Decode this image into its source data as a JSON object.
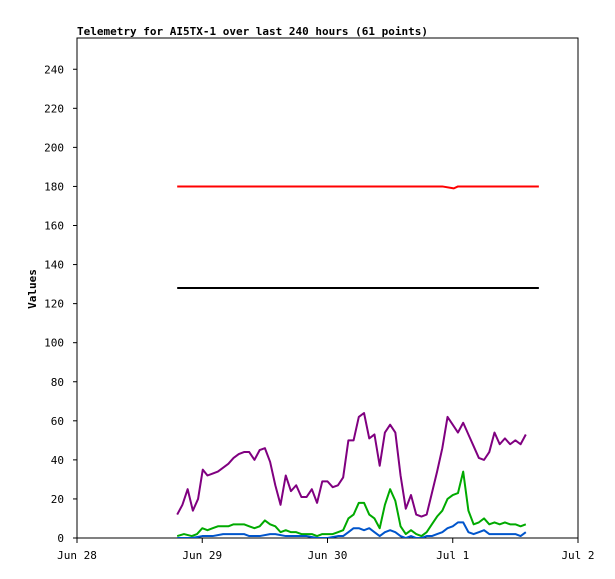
{
  "chart_data": {
    "type": "line",
    "title": "Telemetry for AI5TX-1 over last 240 hours (61 points)",
    "xlabel": "",
    "ylabel": "Values",
    "ylim": [
      0,
      256
    ],
    "y_ticks": [
      0,
      20,
      40,
      60,
      80,
      100,
      120,
      140,
      160,
      180,
      200,
      220,
      240
    ],
    "x_domain_hours": [
      0,
      96
    ],
    "x_ticks": [
      {
        "label": "Jun 28",
        "hour": 0
      },
      {
        "label": "Jun 29",
        "hour": 24
      },
      {
        "label": "Jun 30",
        "hour": 48
      },
      {
        "label": "Jul 1",
        "hour": 72
      },
      {
        "label": "Jul 2",
        "hour": 96
      }
    ],
    "grid": false,
    "legend": "none",
    "series": [
      {
        "color": "#ff0000",
        "points": [
          [
            19.2,
            180
          ],
          [
            38,
            180
          ],
          [
            58,
            180
          ],
          [
            70,
            180
          ],
          [
            72.2,
            179
          ],
          [
            73,
            180
          ],
          [
            85,
            180
          ],
          [
            88.5,
            180
          ]
        ]
      },
      {
        "color": "#000000",
        "points": [
          [
            19.2,
            128
          ],
          [
            88.5,
            128
          ]
        ]
      },
      {
        "color": "#800080",
        "points": [
          [
            19.2,
            12
          ],
          [
            20.2,
            17
          ],
          [
            21.2,
            25
          ],
          [
            22.2,
            14
          ],
          [
            23.2,
            20
          ],
          [
            24.1,
            35
          ],
          [
            25,
            32
          ],
          [
            26,
            33
          ],
          [
            27,
            34
          ],
          [
            28,
            36
          ],
          [
            29,
            38
          ],
          [
            30,
            41
          ],
          [
            31,
            43
          ],
          [
            32,
            44
          ],
          [
            33,
            44
          ],
          [
            34,
            40
          ],
          [
            35,
            45
          ],
          [
            36,
            46
          ],
          [
            37,
            39
          ],
          [
            38,
            27
          ],
          [
            39,
            17
          ],
          [
            40,
            32
          ],
          [
            41,
            24
          ],
          [
            42,
            27
          ],
          [
            43,
            21
          ],
          [
            44,
            21
          ],
          [
            45,
            25
          ],
          [
            46,
            18
          ],
          [
            47,
            29
          ],
          [
            48,
            29
          ],
          [
            49,
            26
          ],
          [
            50,
            27
          ],
          [
            51,
            31
          ],
          [
            52,
            50
          ],
          [
            53,
            50
          ],
          [
            54,
            62
          ],
          [
            55,
            64
          ],
          [
            56,
            51
          ],
          [
            57,
            53
          ],
          [
            58,
            37
          ],
          [
            59,
            54
          ],
          [
            60,
            58
          ],
          [
            61,
            54
          ],
          [
            62,
            32
          ],
          [
            63,
            15
          ],
          [
            64,
            22
          ],
          [
            65,
            12
          ],
          [
            66,
            11
          ],
          [
            67,
            12
          ],
          [
            68,
            23
          ],
          [
            69,
            34
          ],
          [
            70,
            46
          ],
          [
            71,
            62
          ],
          [
            72,
            58
          ],
          [
            73,
            54
          ],
          [
            74,
            59
          ],
          [
            75,
            53
          ],
          [
            76,
            47
          ],
          [
            77,
            41
          ],
          [
            78,
            40
          ],
          [
            79,
            44
          ],
          [
            80,
            54
          ],
          [
            81,
            48
          ],
          [
            82,
            51
          ],
          [
            83,
            48
          ],
          [
            84,
            50
          ],
          [
            85,
            48
          ],
          [
            86,
            53
          ]
        ]
      },
      {
        "color": "#00aa00",
        "points": [
          [
            19.2,
            1
          ],
          [
            20.5,
            2
          ],
          [
            22,
            1
          ],
          [
            23,
            2
          ],
          [
            24,
            5
          ],
          [
            25,
            4
          ],
          [
            26,
            5
          ],
          [
            27,
            6
          ],
          [
            28,
            6
          ],
          [
            29,
            6
          ],
          [
            30,
            7
          ],
          [
            31,
            7
          ],
          [
            32,
            7
          ],
          [
            33,
            6
          ],
          [
            34,
            5
          ],
          [
            35,
            6
          ],
          [
            36,
            9
          ],
          [
            37,
            7
          ],
          [
            38,
            6
          ],
          [
            39,
            3
          ],
          [
            40,
            4
          ],
          [
            41,
            3
          ],
          [
            42,
            3
          ],
          [
            43,
            2
          ],
          [
            44,
            2
          ],
          [
            45,
            2
          ],
          [
            46,
            1
          ],
          [
            47,
            2
          ],
          [
            48,
            2
          ],
          [
            49,
            2
          ],
          [
            50,
            3
          ],
          [
            51,
            4
          ],
          [
            52,
            10
          ],
          [
            53,
            12
          ],
          [
            54,
            18
          ],
          [
            55,
            18
          ],
          [
            56,
            12
          ],
          [
            57,
            10
          ],
          [
            58,
            5
          ],
          [
            59,
            17
          ],
          [
            60,
            25
          ],
          [
            61,
            19
          ],
          [
            62,
            6
          ],
          [
            63,
            2
          ],
          [
            64,
            4
          ],
          [
            65,
            2
          ],
          [
            66,
            1
          ],
          [
            67,
            3
          ],
          [
            68,
            7
          ],
          [
            69,
            11
          ],
          [
            70,
            14
          ],
          [
            71,
            20
          ],
          [
            72,
            22
          ],
          [
            73,
            23
          ],
          [
            74,
            34
          ],
          [
            75,
            14
          ],
          [
            76,
            7
          ],
          [
            77,
            8
          ],
          [
            78,
            10
          ],
          [
            79,
            7
          ],
          [
            80,
            8
          ],
          [
            81,
            7
          ],
          [
            82,
            8
          ],
          [
            83,
            7
          ],
          [
            84,
            7
          ],
          [
            85,
            6
          ],
          [
            86,
            7
          ]
        ]
      },
      {
        "color": "#0055cc",
        "points": [
          [
            19.2,
            0
          ],
          [
            22,
            0
          ],
          [
            24,
            1
          ],
          [
            26,
            1
          ],
          [
            28,
            2
          ],
          [
            30,
            2
          ],
          [
            32,
            2
          ],
          [
            33,
            1
          ],
          [
            35,
            1
          ],
          [
            37,
            2
          ],
          [
            38,
            2
          ],
          [
            40,
            1
          ],
          [
            42,
            1
          ],
          [
            44,
            1
          ],
          [
            46,
            0
          ],
          [
            48,
            0
          ],
          [
            50,
            1
          ],
          [
            51,
            1
          ],
          [
            52,
            3
          ],
          [
            53,
            5
          ],
          [
            54,
            5
          ],
          [
            55,
            4
          ],
          [
            56,
            5
          ],
          [
            57,
            3
          ],
          [
            58,
            1
          ],
          [
            59,
            3
          ],
          [
            60,
            4
          ],
          [
            61,
            3
          ],
          [
            62,
            1
          ],
          [
            63,
            0
          ],
          [
            64,
            1
          ],
          [
            65,
            0
          ],
          [
            66,
            0
          ],
          [
            67,
            1
          ],
          [
            68,
            1
          ],
          [
            69,
            2
          ],
          [
            70,
            3
          ],
          [
            71,
            5
          ],
          [
            72,
            6
          ],
          [
            73,
            8
          ],
          [
            74,
            8
          ],
          [
            75,
            3
          ],
          [
            76,
            2
          ],
          [
            77,
            3
          ],
          [
            78,
            4
          ],
          [
            79,
            2
          ],
          [
            80,
            2
          ],
          [
            81,
            2
          ],
          [
            82,
            2
          ],
          [
            83,
            2
          ],
          [
            84,
            2
          ],
          [
            85,
            1
          ],
          [
            86,
            3
          ]
        ]
      }
    ]
  }
}
